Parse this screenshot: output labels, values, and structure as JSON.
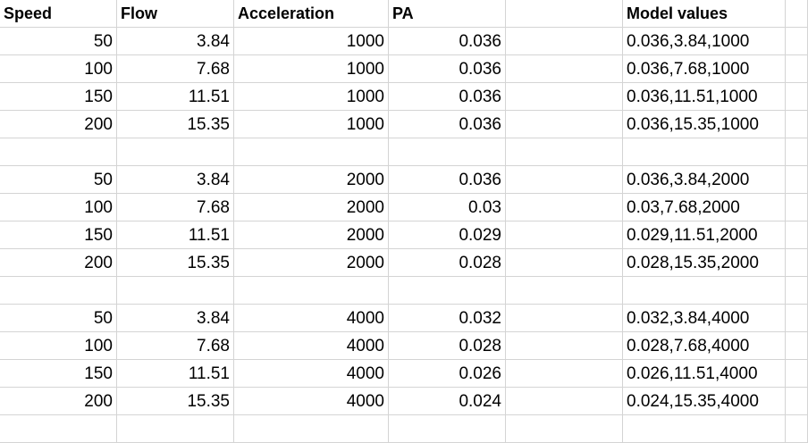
{
  "headers": [
    "Speed",
    "Flow",
    "Acceleration",
    "PA",
    "",
    "Model values"
  ],
  "rows": [
    [
      "50",
      "3.84",
      "1000",
      "0.036",
      "",
      "0.036,3.84,1000"
    ],
    [
      "100",
      "7.68",
      "1000",
      "0.036",
      "",
      "0.036,7.68,1000"
    ],
    [
      "150",
      "11.51",
      "1000",
      "0.036",
      "",
      "0.036,11.51,1000"
    ],
    [
      "200",
      "15.35",
      "1000",
      "0.036",
      "",
      "0.036,15.35,1000"
    ],
    [
      "",
      "",
      "",
      "",
      "",
      ""
    ],
    [
      "50",
      "3.84",
      "2000",
      "0.036",
      "",
      "0.036,3.84,2000"
    ],
    [
      "100",
      "7.68",
      "2000",
      "0.03",
      "",
      "0.03,7.68,2000"
    ],
    [
      "150",
      "11.51",
      "2000",
      "0.029",
      "",
      "0.029,11.51,2000"
    ],
    [
      "200",
      "15.35",
      "2000",
      "0.028",
      "",
      "0.028,15.35,2000"
    ],
    [
      "",
      "",
      "",
      "",
      "",
      ""
    ],
    [
      "50",
      "3.84",
      "4000",
      "0.032",
      "",
      "0.032,3.84,4000"
    ],
    [
      "100",
      "7.68",
      "4000",
      "0.028",
      "",
      "0.028,7.68,4000"
    ],
    [
      "150",
      "11.51",
      "4000",
      "0.026",
      "",
      "0.026,11.51,4000"
    ],
    [
      "200",
      "15.35",
      "4000",
      "0.024",
      "",
      "0.024,15.35,4000"
    ],
    [
      "",
      "",
      "",
      "",
      "",
      ""
    ]
  ]
}
